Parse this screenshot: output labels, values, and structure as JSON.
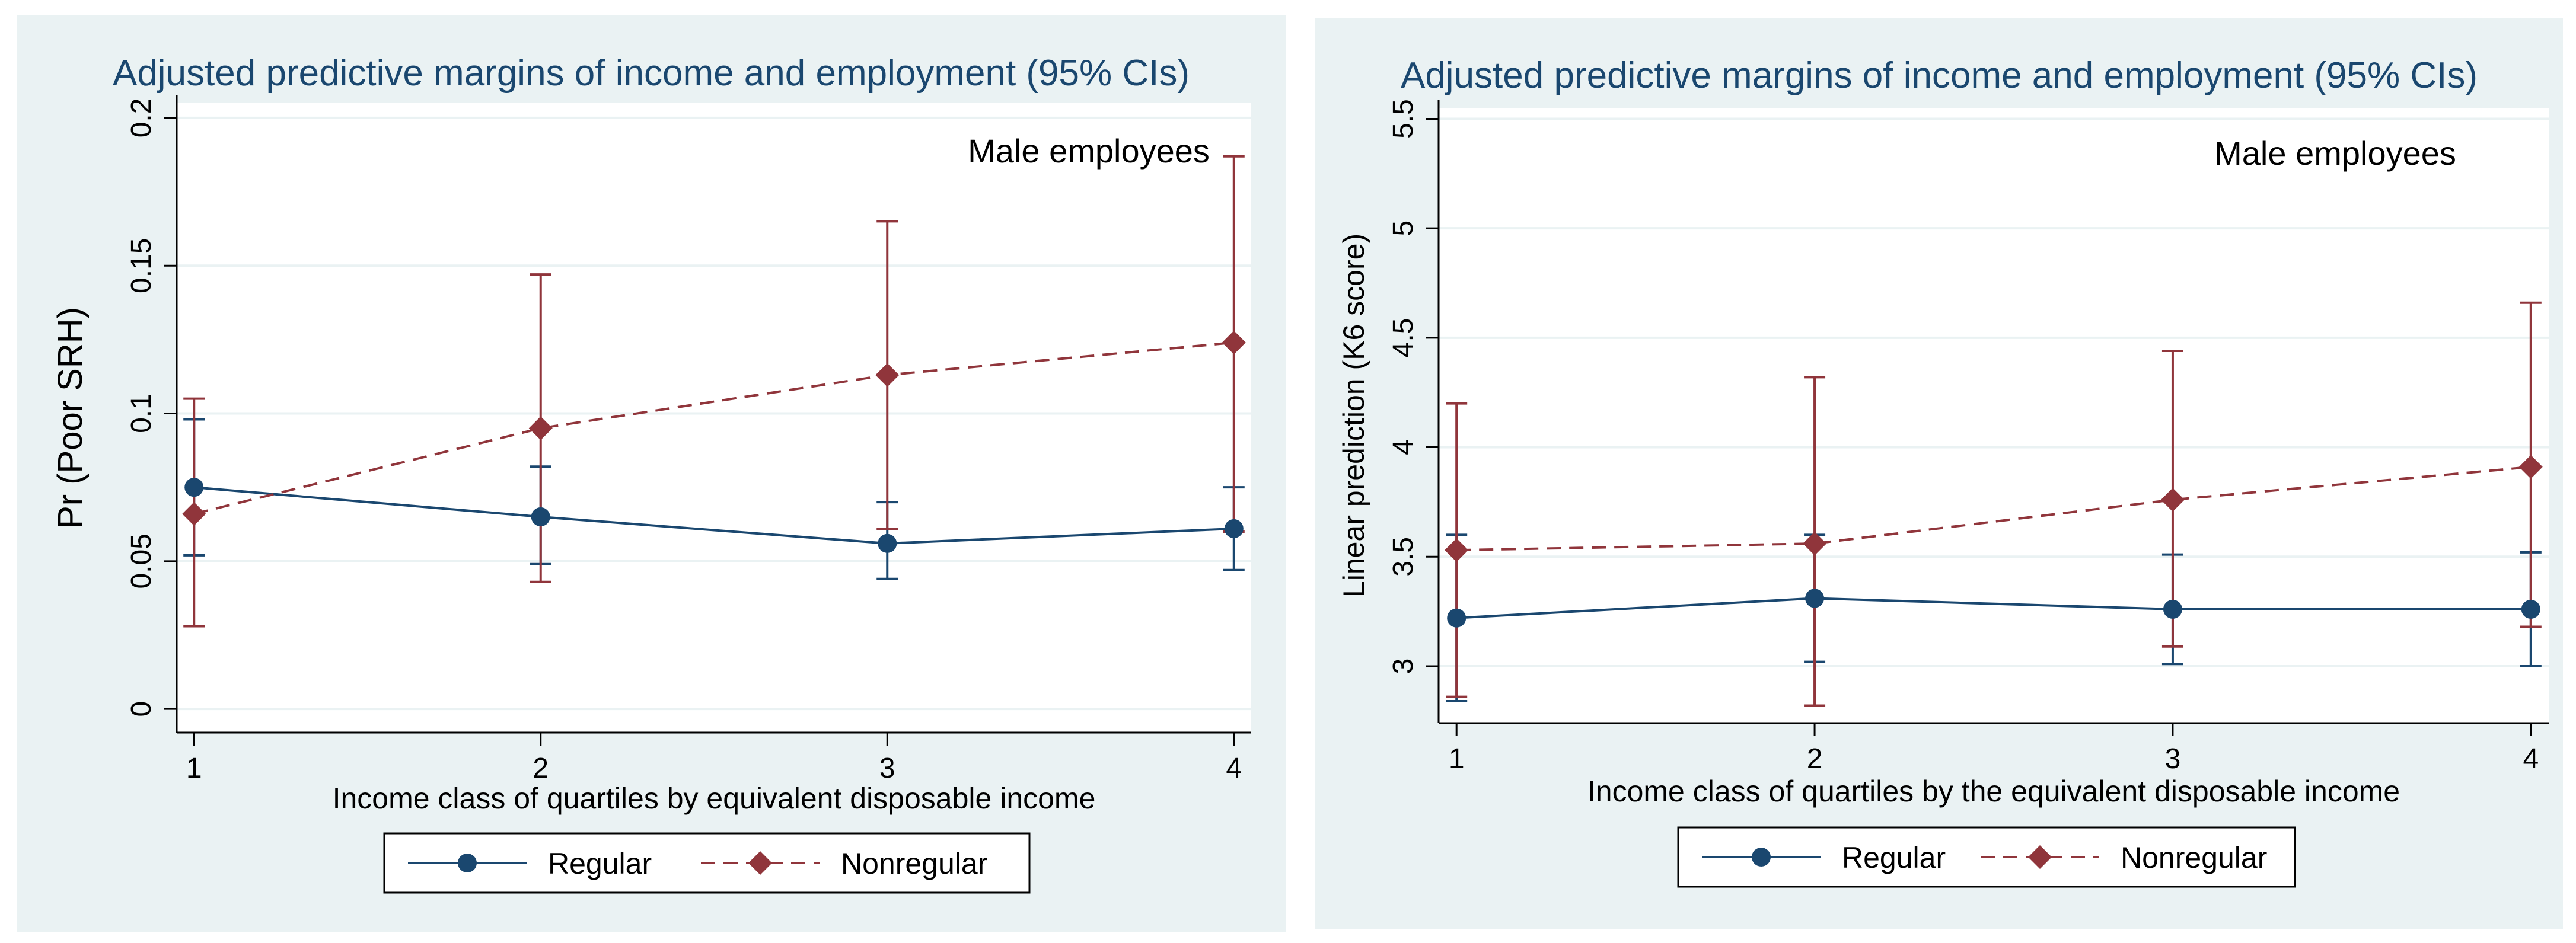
{
  "chart_data": [
    {
      "type": "line",
      "title": "Adjusted predictive margins of income and employment (95% CIs)",
      "annotation": "Male employees",
      "xlabel": "Income class of quartiles by equivalent disposable income",
      "ylabel": "Pr (Poor SRH)",
      "x": [
        1,
        2,
        3,
        4
      ],
      "xlim": [
        0.95,
        4.05
      ],
      "ylim": [
        -0.008,
        0.205
      ],
      "yticks": [
        0,
        0.05,
        0.1,
        0.15,
        0.2
      ],
      "ytick_labels": [
        "0",
        "0.05",
        "0.1",
        "0.15",
        "0.2"
      ],
      "xtick_labels": [
        "1",
        "2",
        "3",
        "4"
      ],
      "grid": true,
      "legend_position": "bottom",
      "series": [
        {
          "name": "Regular",
          "color": "#1a476f",
          "marker": "circle",
          "line_style": "solid",
          "values": [
            0.075,
            0.065,
            0.056,
            0.061
          ],
          "ci_low": [
            0.052,
            0.049,
            0.044,
            0.047
          ],
          "ci_high": [
            0.098,
            0.082,
            0.07,
            0.075
          ]
        },
        {
          "name": "Nonregular",
          "color": "#90353b",
          "marker": "diamond",
          "line_style": "dashed",
          "values": [
            0.066,
            0.095,
            0.113,
            0.124
          ],
          "ci_low": [
            0.028,
            0.043,
            0.061,
            0.06
          ],
          "ci_high": [
            0.105,
            0.147,
            0.165,
            0.187
          ]
        }
      ]
    },
    {
      "type": "line",
      "title": "Adjusted predictive margins of income and employment (95% CIs)",
      "annotation": "Male employees",
      "xlabel": "Income class of quartiles by the equivalent disposable income",
      "ylabel": "Linear prediction (K6 score)",
      "x": [
        1,
        2,
        3,
        4
      ],
      "xlim": [
        0.95,
        4.05
      ],
      "ylim": [
        2.74,
        5.55
      ],
      "yticks": [
        3,
        3.5,
        4,
        4.5,
        5,
        5.5
      ],
      "ytick_labels": [
        "3",
        "3.5",
        "4",
        "4.5",
        "5",
        "5.5"
      ],
      "xtick_labels": [
        "1",
        "2",
        "3",
        "4"
      ],
      "grid": true,
      "legend_position": "bottom",
      "series": [
        {
          "name": "Regular",
          "color": "#1a476f",
          "marker": "circle",
          "line_style": "solid",
          "values": [
            3.22,
            3.31,
            3.26,
            3.26
          ],
          "ci_low": [
            2.84,
            3.02,
            3.01,
            3.0
          ],
          "ci_high": [
            3.6,
            3.6,
            3.51,
            3.52
          ]
        },
        {
          "name": "Nonregular",
          "color": "#90353b",
          "marker": "diamond",
          "line_style": "dashed",
          "values": [
            3.53,
            3.56,
            3.76,
            3.91
          ],
          "ci_low": [
            2.86,
            2.82,
            3.09,
            3.18
          ],
          "ci_high": [
            4.2,
            4.32,
            4.44,
            4.66
          ]
        }
      ]
    }
  ]
}
